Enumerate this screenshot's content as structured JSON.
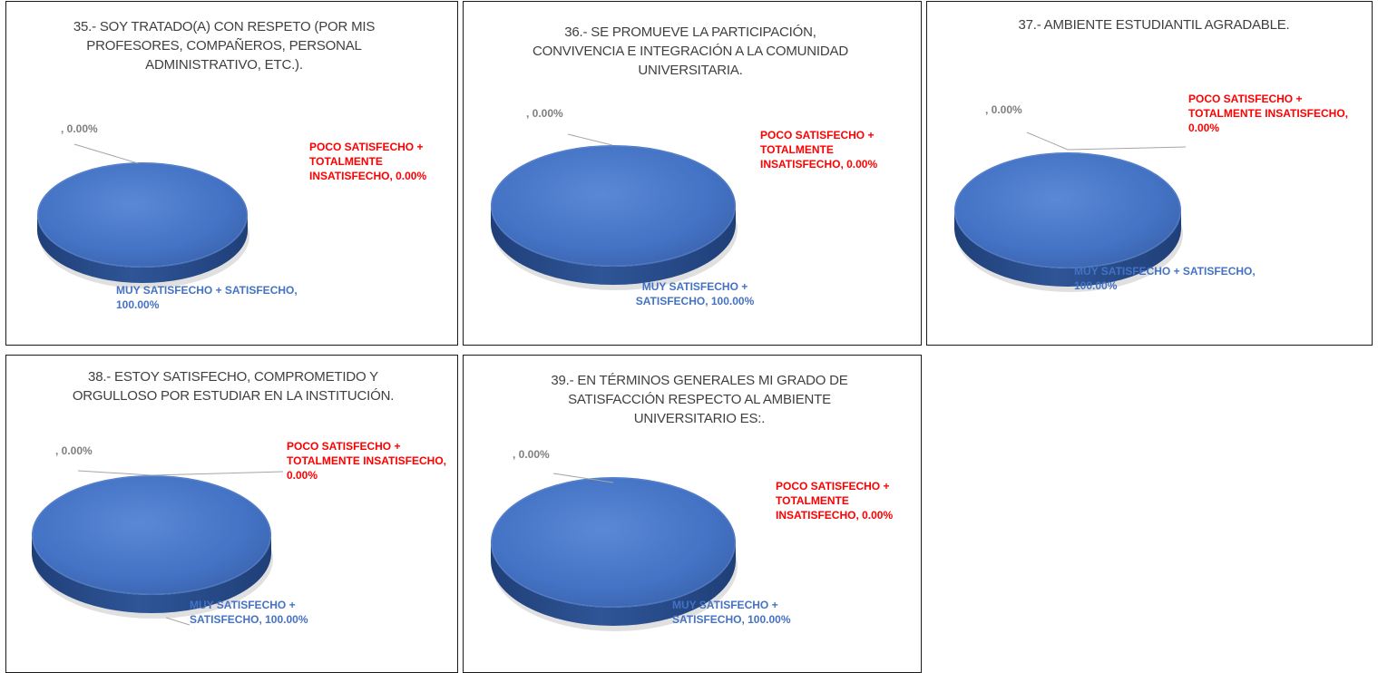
{
  "chart_data": [
    {
      "type": "pie",
      "title": "35.-  SOY TRATADO(A) CON RESPETO (POR MIS\nPROFESORES, COMPAÑEROS, PERSONAL\nADMINISTRATIVO, ETC.).",
      "slices": [
        {
          "label": "",
          "value": 0.0,
          "display": ", 0.00%"
        },
        {
          "label": "POCO SATISFECHO + TOTALMENTE INSATISFECHO",
          "value": 0.0,
          "display": "POCO SATISFECHO +\nTOTALMENTE\nINSATISFECHO, 0.00%"
        },
        {
          "label": "MUY SATISFECHO + SATISFECHO",
          "value": 100.0,
          "display": "MUY SATISFECHO + SATISFECHO,\n100.00%"
        }
      ]
    },
    {
      "type": "pie",
      "title": "36.-  SE PROMUEVE LA PARTICIPACIÓN,\nCONVIVENCIA E INTEGRACIÓN A LA COMUNIDAD\nUNIVERSITARIA.",
      "slices": [
        {
          "label": "",
          "value": 0.0,
          "display": ", 0.00%"
        },
        {
          "label": "POCO SATISFECHO + TOTALMENTE INSATISFECHO",
          "value": 0.0,
          "display": "POCO SATISFECHO +\nTOTALMENTE\nINSATISFECHO, 0.00%"
        },
        {
          "label": "MUY SATISFECHO + SATISFECHO",
          "value": 100.0,
          "display": "MUY SATISFECHO +\nSATISFECHO, 100.00%"
        }
      ]
    },
    {
      "type": "pie",
      "title": "37.- AMBIENTE ESTUDIANTIL  AGRADABLE.",
      "slices": [
        {
          "label": "",
          "value": 0.0,
          "display": ", 0.00%"
        },
        {
          "label": "POCO SATISFECHO + TOTALMENTE INSATISFECHO",
          "value": 0.0,
          "display": "POCO SATISFECHO +\nTOTALMENTE INSATISFECHO,\n0.00%"
        },
        {
          "label": "MUY SATISFECHO + SATISFECHO",
          "value": 100.0,
          "display": "MUY SATISFECHO + SATISFECHO,\n100.00%"
        }
      ]
    },
    {
      "type": "pie",
      "title": "38.-  ESTOY SATISFECHO, COMPROMETIDO Y\nORGULLOSO POR ESTUDIAR EN LA INSTITUCIÓN.",
      "slices": [
        {
          "label": "",
          "value": 0.0,
          "display": ", 0.00%"
        },
        {
          "label": "POCO SATISFECHO + TOTALMENTE INSATISFECHO",
          "value": 0.0,
          "display": "POCO SATISFECHO +\nTOTALMENTE INSATISFECHO,\n0.00%"
        },
        {
          "label": "MUY SATISFECHO + SATISFECHO",
          "value": 100.0,
          "display": "MUY SATISFECHO +\nSATISFECHO, 100.00%"
        }
      ]
    },
    {
      "type": "pie",
      "title": "39.- EN TÉRMINOS GENERALES MI GRADO DE\nSATISFACCIÓN RESPECTO AL AMBIENTE\nUNIVERSITARIO ES:.",
      "slices": [
        {
          "label": "",
          "value": 0.0,
          "display": ", 0.00%"
        },
        {
          "label": "POCO SATISFECHO + TOTALMENTE INSATISFECHO",
          "value": 0.0,
          "display": "POCO SATISFECHO +\nTOTALMENTE\nINSATISFECHO, 0.00%"
        },
        {
          "label": "MUY SATISFECHO + SATISFECHO",
          "value": 100.0,
          "display": "MUY SATISFECHO +\nSATISFECHO, 100.00%"
        }
      ]
    }
  ],
  "colors": {
    "pie_fill": "#4472c4",
    "pie_side": "#2f5597",
    "zero_label": "#7f7f7f",
    "poco_label": "#ff0000",
    "muy_label": "#4472c4",
    "leader_line": "#a6a6a6"
  }
}
